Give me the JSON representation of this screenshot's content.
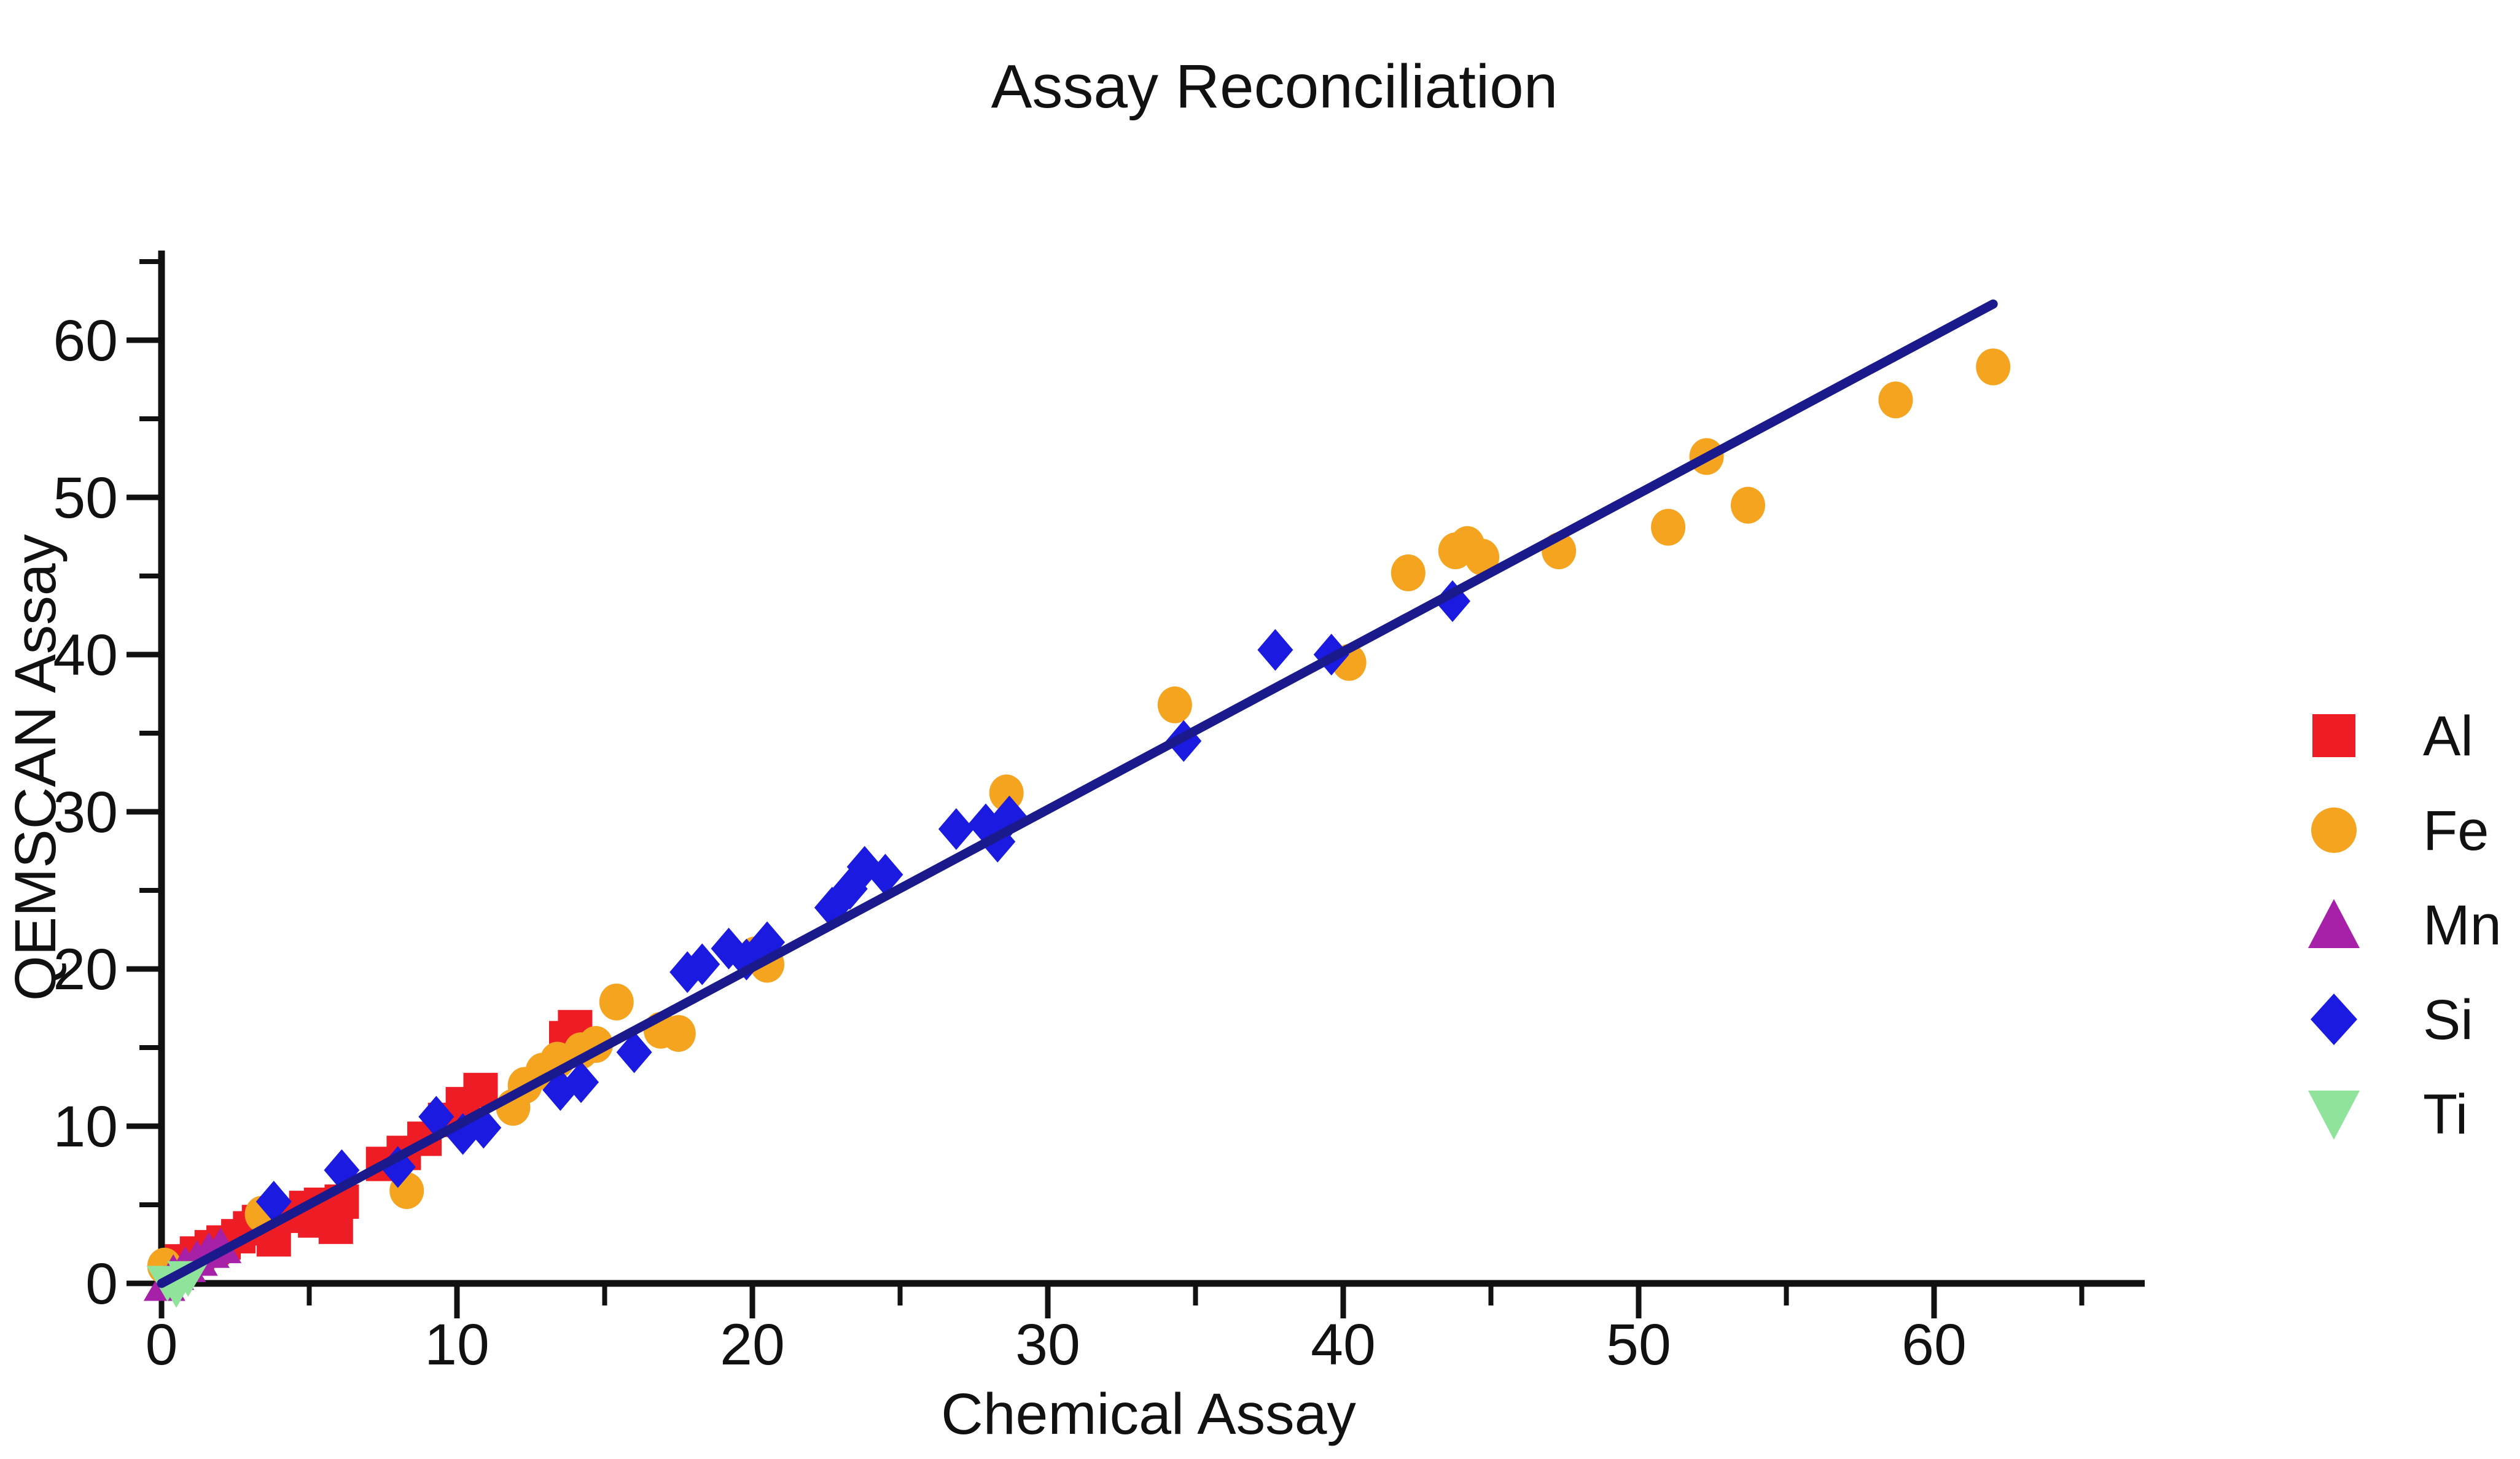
{
  "chart_data": {
    "type": "scatter",
    "title": "Assay Reconciliation",
    "xlabel": "Chemical Assay",
    "ylabel": "QEMSCAN Assay",
    "xlim": [
      0,
      67.3
    ],
    "ylim": [
      0,
      65.6
    ],
    "grid": false,
    "legend_position": "right-outside",
    "xticks_major": [
      0,
      10,
      20,
      30,
      40,
      50,
      60
    ],
    "xticks_minor": [
      5,
      15,
      25,
      35,
      45,
      55,
      65
    ],
    "yticks_major": [
      0,
      10,
      20,
      30,
      40,
      50,
      60
    ],
    "yticks_minor": [
      5,
      15,
      25,
      35,
      45,
      55,
      65
    ],
    "trend_line": {
      "color": "#1a1a8c",
      "from": [
        0,
        0
      ],
      "to": [
        62,
        62.3
      ]
    },
    "axis_color": "#111111",
    "series": [
      {
        "name": "Al",
        "marker": "square",
        "color": "#ee1c24",
        "points": [
          [
            0.7,
            1.4
          ],
          [
            1.2,
            1.9
          ],
          [
            1.7,
            2.3
          ],
          [
            2.1,
            2.6
          ],
          [
            2.6,
            3.0
          ],
          [
            3.0,
            3.5
          ],
          [
            3.3,
            3.9
          ],
          [
            3.8,
            2.8
          ],
          [
            4.6,
            4.3
          ],
          [
            4.9,
            4.8
          ],
          [
            5.2,
            4.0
          ],
          [
            5.4,
            5.0
          ],
          [
            5.7,
            4.4
          ],
          [
            5.9,
            3.6
          ],
          [
            6.1,
            5.2
          ],
          [
            7.5,
            7.6
          ],
          [
            8.2,
            8.3
          ],
          [
            8.9,
            9.2
          ],
          [
            9.6,
            10.4
          ],
          [
            10.2,
            11.4
          ],
          [
            10.8,
            12.3
          ],
          [
            13.7,
            15.6
          ],
          [
            14.0,
            16.3
          ]
        ]
      },
      {
        "name": "Fe",
        "marker": "circle",
        "color": "#f5a41f",
        "points": [
          [
            0.1,
            1.1
          ],
          [
            3.4,
            4.4
          ],
          [
            8.3,
            5.9
          ],
          [
            11.9,
            11.2
          ],
          [
            12.3,
            12.6
          ],
          [
            12.9,
            13.5
          ],
          [
            13.4,
            14.2
          ],
          [
            14.2,
            14.8
          ],
          [
            14.7,
            15.2
          ],
          [
            15.4,
            17.9
          ],
          [
            16.9,
            16.1
          ],
          [
            17.5,
            15.9
          ],
          [
            20.1,
            20.9
          ],
          [
            20.5,
            20.3
          ],
          [
            28.6,
            31.2
          ],
          [
            34.3,
            36.8
          ],
          [
            40.2,
            39.5
          ],
          [
            42.2,
            45.2
          ],
          [
            43.8,
            46.6
          ],
          [
            44.2,
            47.0
          ],
          [
            44.7,
            46.2
          ],
          [
            47.3,
            46.6
          ],
          [
            51.0,
            48.1
          ],
          [
            52.3,
            52.6
          ],
          [
            53.7,
            49.5
          ],
          [
            58.7,
            56.2
          ],
          [
            62.0,
            58.3
          ]
        ]
      },
      {
        "name": "Mn",
        "marker": "triangle-up",
        "color": "#a620a8",
        "points": [
          [
            0.1,
            -0.1
          ],
          [
            0.4,
            0.6
          ],
          [
            0.8,
            1.1
          ],
          [
            1.2,
            1.5
          ],
          [
            1.6,
            2.0
          ],
          [
            2.0,
            2.3
          ]
        ]
      },
      {
        "name": "Si",
        "marker": "diamond",
        "color": "#1b1ae0",
        "points": [
          [
            3.8,
            5.2
          ],
          [
            6.1,
            7.2
          ],
          [
            8.0,
            7.4
          ],
          [
            9.3,
            10.6
          ],
          [
            10.2,
            9.5
          ],
          [
            10.9,
            9.9
          ],
          [
            13.5,
            12.3
          ],
          [
            14.2,
            12.8
          ],
          [
            16.0,
            14.7
          ],
          [
            17.8,
            19.8
          ],
          [
            18.3,
            20.3
          ],
          [
            19.2,
            21.3
          ],
          [
            19.8,
            20.6
          ],
          [
            20.5,
            21.7
          ],
          [
            22.7,
            23.9
          ],
          [
            23.3,
            25.1
          ],
          [
            23.8,
            26.5
          ],
          [
            24.5,
            26.0
          ],
          [
            26.9,
            28.9
          ],
          [
            27.9,
            29.2
          ],
          [
            28.3,
            28.1
          ],
          [
            28.7,
            29.7
          ],
          [
            34.6,
            34.5
          ],
          [
            37.7,
            40.3
          ],
          [
            39.6,
            40.0
          ],
          [
            43.7,
            43.4
          ]
        ]
      },
      {
        "name": "Ti",
        "marker": "triangle-down",
        "color": "#8fe39a",
        "points": [
          [
            0.2,
            0.1
          ],
          [
            0.5,
            -0.3
          ],
          [
            0.9,
            0.4
          ]
        ]
      }
    ]
  }
}
